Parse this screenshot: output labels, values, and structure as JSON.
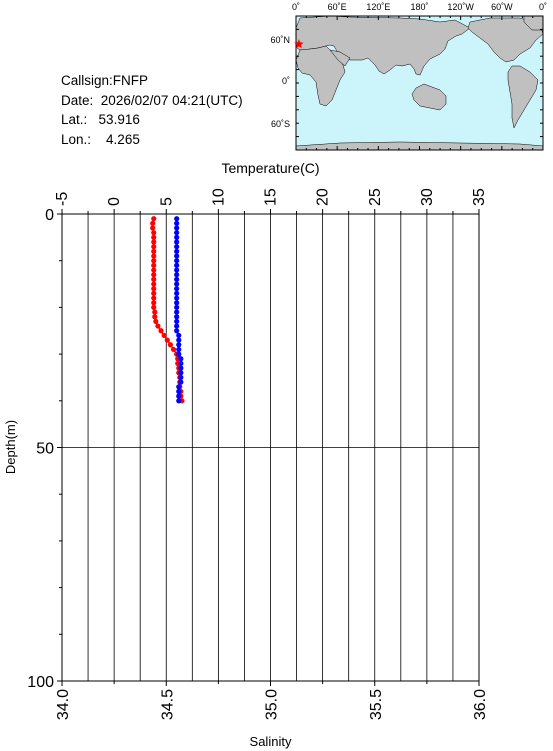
{
  "station": {
    "callsign_label": "Callsign:",
    "callsign": "FNFP",
    "date_label": "Date:",
    "date": "2026/02/07 04:21(UTC)",
    "lat_label": "Lat.:",
    "lat": "53.916",
    "lon_label": "Lon.:",
    "lon": "4.265"
  },
  "map": {
    "lon_labels": [
      "0˚",
      "60˚E",
      "120˚E",
      "180˚",
      "120˚W",
      "60˚W",
      "0˚"
    ],
    "lat_labels": [
      "60˚N",
      "0˚",
      "60˚S"
    ],
    "ocean_color": "#ccf5fb",
    "land_color": "#c0c0c0",
    "marker_color": "#ff0000",
    "marker": {
      "lat": 53.916,
      "lon": 4.265
    }
  },
  "chart_data": {
    "type": "line",
    "title": "",
    "temperature_axis": {
      "label": "Temperature(C)",
      "range": [
        -5,
        35
      ],
      "ticks": [
        "-5",
        "0",
        "5",
        "10",
        "15",
        "20",
        "25",
        "30",
        "35"
      ]
    },
    "salinity_axis": {
      "label": "Salinity",
      "range": [
        34.0,
        36.0
      ],
      "ticks": [
        "34.0",
        "34.5",
        "35.0",
        "35.5",
        "36.0"
      ]
    },
    "depth_axis": {
      "label": "Depth(m)",
      "range": [
        0,
        100
      ],
      "reversed": true,
      "ticks": [
        "0",
        "50",
        "100"
      ]
    },
    "grid": true,
    "series": [
      {
        "name": "Temperature",
        "axis": "temperature",
        "color": "#ff0000",
        "points": [
          [
            3.8,
            1
          ],
          [
            3.7,
            2
          ],
          [
            3.7,
            3
          ],
          [
            3.8,
            4
          ],
          [
            3.8,
            5
          ],
          [
            3.8,
            6
          ],
          [
            3.8,
            7
          ],
          [
            3.8,
            8
          ],
          [
            3.8,
            9
          ],
          [
            3.8,
            10
          ],
          [
            3.8,
            11
          ],
          [
            3.8,
            12
          ],
          [
            3.8,
            13
          ],
          [
            3.8,
            14
          ],
          [
            3.8,
            15
          ],
          [
            3.8,
            16
          ],
          [
            3.8,
            17
          ],
          [
            3.8,
            18
          ],
          [
            3.8,
            19
          ],
          [
            3.8,
            20
          ],
          [
            3.9,
            21
          ],
          [
            3.9,
            22
          ],
          [
            4.0,
            23
          ],
          [
            4.2,
            24
          ],
          [
            4.5,
            25
          ],
          [
            4.8,
            26
          ],
          [
            5.1,
            27
          ],
          [
            5.4,
            28
          ],
          [
            5.7,
            29
          ],
          [
            6.0,
            30
          ],
          [
            6.1,
            31
          ],
          [
            6.1,
            32
          ],
          [
            6.2,
            33
          ],
          [
            6.2,
            34
          ],
          [
            6.3,
            35
          ],
          [
            6.3,
            36
          ],
          [
            6.3,
            37
          ],
          [
            6.4,
            38
          ],
          [
            6.4,
            39
          ],
          [
            6.5,
            40
          ]
        ]
      },
      {
        "name": "Salinity",
        "axis": "salinity",
        "color": "#0000ff",
        "points": [
          [
            34.55,
            1
          ],
          [
            34.55,
            2
          ],
          [
            34.55,
            3
          ],
          [
            34.55,
            4
          ],
          [
            34.55,
            5
          ],
          [
            34.55,
            6
          ],
          [
            34.55,
            7
          ],
          [
            34.55,
            8
          ],
          [
            34.55,
            9
          ],
          [
            34.55,
            10
          ],
          [
            34.55,
            11
          ],
          [
            34.55,
            12
          ],
          [
            34.55,
            13
          ],
          [
            34.55,
            14
          ],
          [
            34.55,
            15
          ],
          [
            34.55,
            16
          ],
          [
            34.55,
            17
          ],
          [
            34.55,
            18
          ],
          [
            34.55,
            19
          ],
          [
            34.55,
            20
          ],
          [
            34.55,
            21
          ],
          [
            34.55,
            22
          ],
          [
            34.55,
            23
          ],
          [
            34.55,
            24
          ],
          [
            34.55,
            25
          ],
          [
            34.56,
            26
          ],
          [
            34.56,
            27
          ],
          [
            34.56,
            28
          ],
          [
            34.56,
            29
          ],
          [
            34.56,
            30
          ],
          [
            34.57,
            31
          ],
          [
            34.57,
            32
          ],
          [
            34.57,
            33
          ],
          [
            34.57,
            34
          ],
          [
            34.57,
            35
          ],
          [
            34.57,
            36
          ],
          [
            34.56,
            37
          ],
          [
            34.56,
            38
          ],
          [
            34.56,
            39
          ],
          [
            34.56,
            40
          ]
        ]
      }
    ]
  }
}
